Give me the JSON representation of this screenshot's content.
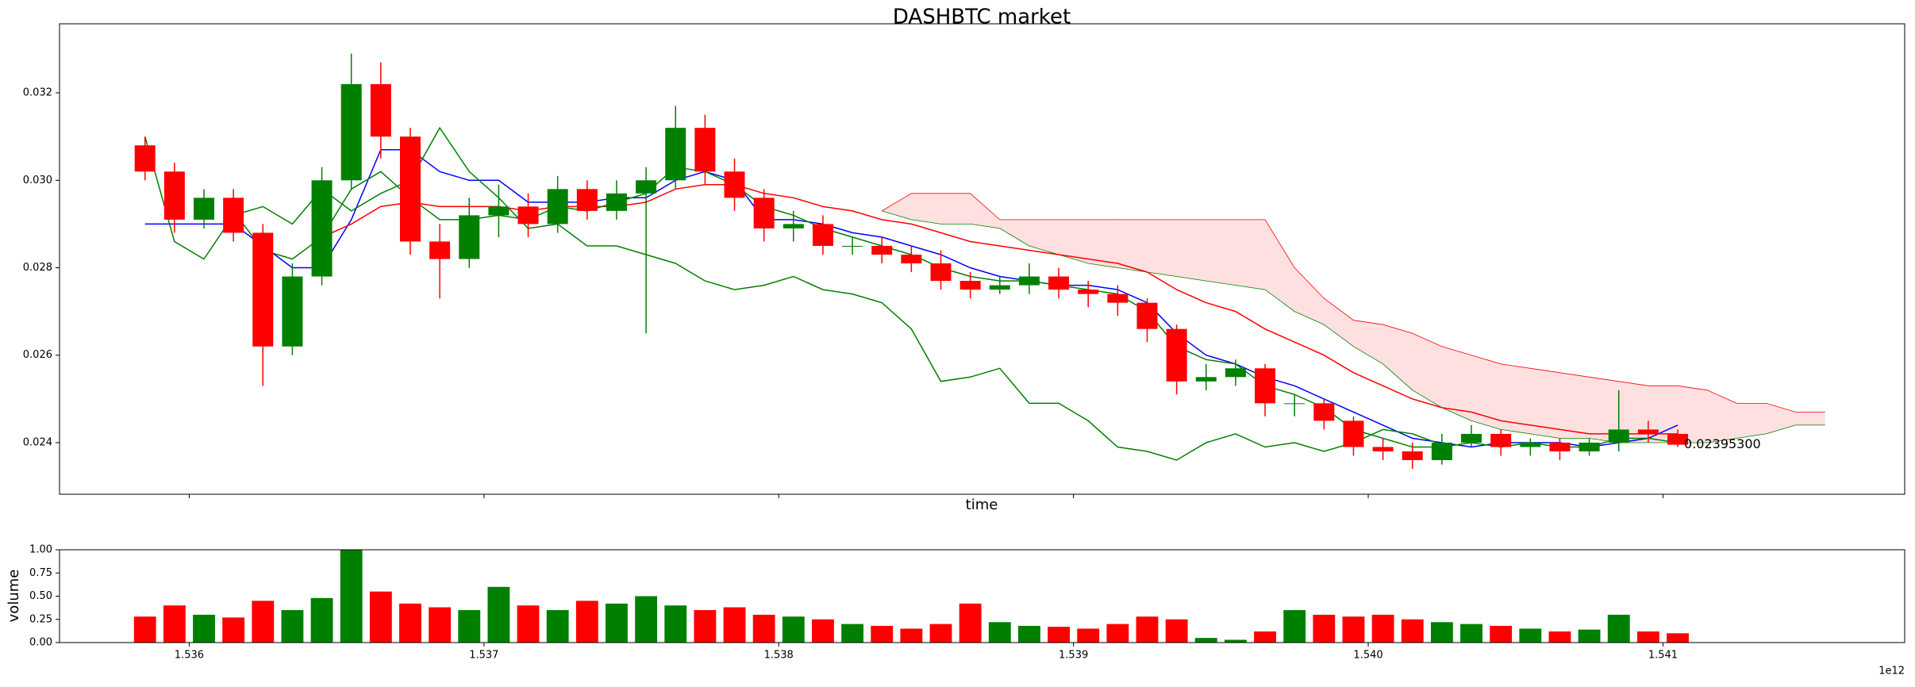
{
  "chart_data": [
    {
      "type": "candlestick",
      "title": "DASHBTC market",
      "xlabel": "time",
      "x": [
        1.53585,
        1.53595,
        1.53605,
        1.53615,
        1.53625,
        1.53635,
        1.53645,
        1.53655,
        1.53665,
        1.53675,
        1.53685,
        1.53695,
        1.53705,
        1.53715,
        1.53725,
        1.53735,
        1.53745,
        1.53755,
        1.53765,
        1.53775,
        1.53785,
        1.53795,
        1.53805,
        1.53815,
        1.53825,
        1.53835,
        1.53845,
        1.53855,
        1.53865,
        1.53875,
        1.53885,
        1.53895,
        1.53905,
        1.53915,
        1.53925,
        1.53935,
        1.53945,
        1.53955,
        1.53965,
        1.53975,
        1.53985,
        1.53995,
        1.54005,
        1.54015,
        1.54025,
        1.54035,
        1.54045,
        1.54055,
        1.54065,
        1.54075,
        1.54085,
        1.54095,
        1.54105
      ],
      "open": [
        0.0308,
        0.0302,
        0.0291,
        0.0296,
        0.0288,
        0.0262,
        0.0278,
        0.03,
        0.0322,
        0.031,
        0.0286,
        0.0282,
        0.0292,
        0.0294,
        0.029,
        0.0298,
        0.0293,
        0.0297,
        0.03,
        0.0312,
        0.0302,
        0.0296,
        0.0289,
        0.029,
        0.0285,
        0.0285,
        0.0283,
        0.0281,
        0.0277,
        0.0275,
        0.0276,
        0.0278,
        0.0275,
        0.0274,
        0.0272,
        0.0266,
        0.0254,
        0.0255,
        0.0257,
        0.0249,
        0.0249,
        0.0245,
        0.0239,
        0.0238,
        0.0236,
        0.024,
        0.0242,
        0.0239,
        0.024,
        0.0238,
        0.024,
        0.0243,
        0.0242
      ],
      "high": [
        0.031,
        0.0304,
        0.0298,
        0.0298,
        0.029,
        0.0281,
        0.0303,
        0.0329,
        0.0327,
        0.0312,
        0.029,
        0.0296,
        0.0299,
        0.0297,
        0.0301,
        0.03,
        0.03,
        0.0303,
        0.0317,
        0.0315,
        0.0305,
        0.0298,
        0.0293,
        0.0292,
        0.0287,
        0.0287,
        0.0285,
        0.0284,
        0.0279,
        0.0278,
        0.0281,
        0.028,
        0.0277,
        0.0276,
        0.0273,
        0.0267,
        0.0258,
        0.0259,
        0.0258,
        0.0251,
        0.025,
        0.0246,
        0.0241,
        0.024,
        0.0242,
        0.0244,
        0.0243,
        0.0241,
        0.0241,
        0.0241,
        0.0252,
        0.0245,
        0.0243
      ],
      "low": [
        0.03,
        0.0288,
        0.0289,
        0.0286,
        0.0253,
        0.026,
        0.0276,
        0.0298,
        0.0305,
        0.0283,
        0.0273,
        0.028,
        0.0287,
        0.0287,
        0.0288,
        0.0291,
        0.0291,
        0.0265,
        0.0298,
        0.0299,
        0.0293,
        0.0286,
        0.0286,
        0.0283,
        0.0283,
        0.0281,
        0.0279,
        0.0275,
        0.0273,
        0.0274,
        0.0274,
        0.0273,
        0.0271,
        0.0269,
        0.0263,
        0.0251,
        0.0252,
        0.0253,
        0.0246,
        0.0246,
        0.0243,
        0.0237,
        0.0236,
        0.0234,
        0.0235,
        0.0239,
        0.0237,
        0.0237,
        0.0236,
        0.0237,
        0.0238,
        0.024,
        0.0239
      ],
      "close": [
        0.0302,
        0.0291,
        0.0296,
        0.0288,
        0.0262,
        0.0278,
        0.03,
        0.0322,
        0.031,
        0.0286,
        0.0282,
        0.0292,
        0.0294,
        0.029,
        0.0298,
        0.0293,
        0.0297,
        0.03,
        0.0312,
        0.0302,
        0.0296,
        0.0289,
        0.029,
        0.0285,
        0.0285,
        0.0283,
        0.0281,
        0.0277,
        0.0275,
        0.0276,
        0.0278,
        0.0275,
        0.0274,
        0.0272,
        0.0266,
        0.0254,
        0.0255,
        0.0257,
        0.0249,
        0.0249,
        0.0245,
        0.0239,
        0.0238,
        0.0236,
        0.024,
        0.0242,
        0.0239,
        0.024,
        0.0238,
        0.024,
        0.0243,
        0.0242,
        0.023953
      ],
      "close_label": "0.02395300",
      "up_color": "#008000",
      "down_color": "#ff0000",
      "lines": [
        {
          "color": "#0000ff",
          "values": [
            0.029,
            0.029,
            0.029,
            0.029,
            0.0285,
            0.028,
            0.028,
            0.0291,
            0.0307,
            0.0307,
            0.0302,
            0.03,
            0.03,
            0.0295,
            0.0295,
            0.0295,
            0.0296,
            0.0296,
            0.03,
            0.0302,
            0.03,
            0.0291,
            0.0291,
            0.029,
            0.0288,
            0.0287,
            0.0285,
            0.0283,
            0.028,
            0.0278,
            0.0277,
            0.0276,
            0.0276,
            0.0275,
            0.0272,
            0.0265,
            0.026,
            0.0258,
            0.0255,
            0.0253,
            0.025,
            0.0247,
            0.0244,
            0.0241,
            0.024,
            0.0239,
            0.024,
            0.024,
            0.024,
            0.0239,
            0.024,
            0.0241,
            0.0244
          ]
        },
        {
          "color": "#008000",
          "values": [
            0.031,
            0.0286,
            0.0282,
            0.0292,
            0.0294,
            0.029,
            0.0298,
            0.0293,
            0.0297,
            0.03,
            0.0312,
            0.0302,
            0.0296,
            0.0289,
            0.029,
            0.0285,
            0.0285,
            0.0283,
            0.0281,
            0.0277,
            0.0275,
            0.0276,
            0.0278,
            0.0275,
            0.0274,
            0.0272,
            0.0266,
            0.0254,
            0.0255,
            0.0257,
            0.0249,
            0.0249,
            0.0245,
            0.0239,
            0.0238,
            0.0236,
            0.024,
            0.0242,
            0.0239,
            0.024,
            0.0238,
            0.024,
            0.0243,
            0.0242,
            0.023953,
            null,
            null,
            null,
            null,
            null,
            null,
            null,
            null
          ]
        },
        {
          "color": "#ff0000",
          "values": [
            null,
            null,
            null,
            null,
            null,
            null,
            0.0287,
            0.029,
            0.0294,
            0.0295,
            0.0294,
            0.0294,
            0.0294,
            0.0293,
            0.0294,
            0.0294,
            0.0294,
            0.0295,
            0.0298,
            0.0299,
            0.0299,
            0.0297,
            0.0296,
            0.0294,
            0.0293,
            0.0291,
            0.029,
            0.0288,
            0.0286,
            0.0285,
            0.0284,
            0.0283,
            0.0282,
            0.0281,
            0.0279,
            0.0275,
            0.0272,
            0.027,
            0.0266,
            0.0263,
            0.026,
            0.0256,
            0.0253,
            0.025,
            0.0248,
            0.0247,
            0.0245,
            0.0244,
            0.0243,
            0.0242,
            0.0242,
            0.0242,
            0.0242
          ]
        },
        {
          "color": "#008000",
          "values": [
            null,
            null,
            null,
            0.0293,
            0.0284,
            0.0282,
            0.0287,
            0.0298,
            0.0302,
            0.0296,
            0.0291,
            0.0291,
            0.0292,
            0.0291,
            0.0294,
            0.0293,
            0.0295,
            0.0297,
            0.0303,
            0.0302,
            0.0299,
            0.0294,
            0.0292,
            0.0289,
            0.0287,
            0.0285,
            0.0283,
            0.028,
            0.0278,
            0.0277,
            0.0277,
            0.0276,
            0.0275,
            0.0274,
            0.027,
            0.0262,
            0.0259,
            0.0258,
            0.0253,
            0.0251,
            0.0248,
            0.0243,
            0.0241,
            0.0239,
            0.0239,
            0.024,
            0.0239,
            0.024,
            0.0239,
            0.0239,
            0.0241,
            0.0241,
            0.024
          ]
        }
      ],
      "cloud": {
        "fill": "#ffcccc",
        "upper_color": "#ff0000",
        "lower_color": "#008000",
        "x": [
          1.53835,
          1.53845,
          1.53855,
          1.53865,
          1.53875,
          1.53885,
          1.53895,
          1.53905,
          1.53915,
          1.53925,
          1.53935,
          1.53945,
          1.53955,
          1.53965,
          1.53975,
          1.53985,
          1.53995,
          1.54005,
          1.54015,
          1.54025,
          1.54035,
          1.54045,
          1.54055,
          1.54065,
          1.54075,
          1.54085,
          1.54095,
          1.54105,
          1.54115,
          1.54125,
          1.54135,
          1.54145,
          1.54155
        ],
        "upper": [
          0.0293,
          0.0297,
          0.0297,
          0.0297,
          0.0291,
          0.0291,
          0.0291,
          0.0291,
          0.0291,
          0.0291,
          0.0291,
          0.0291,
          0.0291,
          0.0291,
          0.028,
          0.0273,
          0.0268,
          0.0267,
          0.0265,
          0.0262,
          0.026,
          0.0258,
          0.0257,
          0.0256,
          0.0255,
          0.0254,
          0.0253,
          0.0253,
          0.0252,
          0.0249,
          0.0249,
          0.0247,
          0.0247
        ],
        "lower": [
          0.0293,
          0.0291,
          0.029,
          0.029,
          0.0289,
          0.0285,
          0.0283,
          0.0281,
          0.028,
          0.0279,
          0.0278,
          0.0277,
          0.0276,
          0.0275,
          0.027,
          0.0267,
          0.0262,
          0.0258,
          0.0252,
          0.0248,
          0.0245,
          0.0243,
          0.0242,
          0.0241,
          0.0241,
          0.024,
          0.024,
          0.024,
          0.024,
          0.0241,
          0.0242,
          0.0244,
          0.0244
        ]
      },
      "xlim": [
        1.53556,
        1.54182
      ],
      "ylim": [
        0.02282,
        0.03358
      ],
      "xticks": [
        1.536,
        1.537,
        1.538,
        1.539,
        1.54,
        1.541
      ],
      "yticks": [
        0.024,
        0.026,
        0.028,
        {
          "value": 0.03,
          "label": "0.030"
        },
        0.032
      ]
    },
    {
      "type": "bar",
      "ylabel": "volume",
      "x_offset_label": "1e12",
      "x": [
        1.53585,
        1.53595,
        1.53605,
        1.53615,
        1.53625,
        1.53635,
        1.53645,
        1.53655,
        1.53665,
        1.53675,
        1.53685,
        1.53695,
        1.53705,
        1.53715,
        1.53725,
        1.53735,
        1.53745,
        1.53755,
        1.53765,
        1.53775,
        1.53785,
        1.53795,
        1.53805,
        1.53815,
        1.53825,
        1.53835,
        1.53845,
        1.53855,
        1.53865,
        1.53875,
        1.53885,
        1.53895,
        1.53905,
        1.53915,
        1.53925,
        1.53935,
        1.53945,
        1.53955,
        1.53965,
        1.53975,
        1.53985,
        1.53995,
        1.54005,
        1.54015,
        1.54025,
        1.54035,
        1.54045,
        1.54055,
        1.54065,
        1.54075,
        1.54085,
        1.54095,
        1.54105
      ],
      "values": [
        0.28,
        0.4,
        0.3,
        0.27,
        0.45,
        0.35,
        0.48,
        1.0,
        0.55,
        0.42,
        0.38,
        0.35,
        0.6,
        0.4,
        0.35,
        0.45,
        0.42,
        0.5,
        0.4,
        0.35,
        0.38,
        0.3,
        0.28,
        0.25,
        0.2,
        0.18,
        0.15,
        0.2,
        0.42,
        0.22,
        0.18,
        0.17,
        0.15,
        0.2,
        0.28,
        0.25,
        0.05,
        0.03,
        0.12,
        0.35,
        0.3,
        0.28,
        0.3,
        0.25,
        0.22,
        0.2,
        0.18,
        0.15,
        0.12,
        0.14,
        0.3,
        0.12,
        0.1
      ],
      "xlim": [
        1.53556,
        1.54182
      ],
      "ylim": [
        0,
        1
      ],
      "xticks": [
        1.536,
        1.537,
        1.538,
        1.539,
        {
          "value": 1.54,
          "label": "1.540"
        },
        1.541
      ],
      "yticks": [
        {
          "value": 0,
          "label": "0.00"
        },
        {
          "value": 0.25,
          "label": "0.25"
        },
        {
          "value": 0.5,
          "label": "0.50"
        },
        {
          "value": 0.75,
          "label": "0.75"
        },
        {
          "value": 1,
          "label": "1.00"
        }
      ]
    }
  ]
}
